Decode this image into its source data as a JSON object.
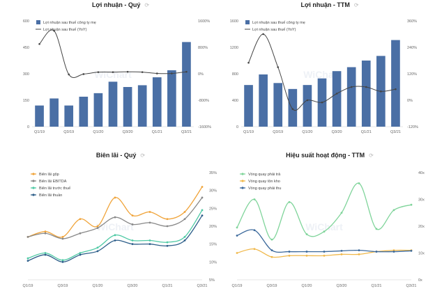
{
  "charts": [
    {
      "id": "c1",
      "title": "Lợi nhuận - Quý",
      "chart_data": {
        "type": "bar",
        "title": "Lợi nhuận - Quý",
        "categories": [
          "Q1/19",
          "Q2/19",
          "Q3/19",
          "Q4/19",
          "Q1/20",
          "Q2/20",
          "Q3/20",
          "Q4/20",
          "Q1/21",
          "Q2/21",
          "Q3/21"
        ],
        "x_tick_labels": [
          "Q1/19",
          "Q3/19",
          "Q1/20",
          "Q3/20",
          "Q1/21",
          "Q3/21"
        ],
        "series": [
          {
            "name": "Lợi nhuận sau thuế công ty mẹ",
            "type": "bar",
            "axis": "left",
            "color": "#4a6fa5",
            "values": [
              120,
              160,
              120,
              170,
              190,
              255,
              225,
              235,
              280,
              320,
              480
            ]
          },
          {
            "name": "Lợi nhuận sau thuế (YoY)",
            "type": "line",
            "axis": "right",
            "color": "#444444",
            "values": [
              900,
              1300,
              -20,
              -10,
              50,
              50,
              60,
              50,
              10,
              10,
              60
            ]
          }
        ],
        "ylim_left": [
          0,
          600
        ],
        "yticks_left": [
          0,
          150,
          300,
          450,
          600
        ],
        "ylim_right": [
          -1600,
          1600
        ],
        "yticks_right": [
          "1600%",
          "800%",
          "0%",
          "-800%",
          "-1600%"
        ],
        "yticks_left_labels": [
          "600",
          "450",
          "300",
          "150",
          "0"
        ]
      }
    },
    {
      "id": "c2",
      "title": "Lợi nhuận - TTM",
      "chart_data": {
        "type": "bar",
        "title": "Lợi nhuận - TTM",
        "categories": [
          "Q1/19",
          "Q2/19",
          "Q3/19",
          "Q4/19",
          "Q1/20",
          "Q2/20",
          "Q3/20",
          "Q4/20",
          "Q1/21",
          "Q2/21",
          "Q3/21"
        ],
        "x_tick_labels": [
          "Q1/19",
          "Q3/19",
          "Q1/20",
          "Q3/20",
          "Q1/21",
          "Q3/21"
        ],
        "series": [
          {
            "name": "Lợi nhuận sau thuế công ty mẹ",
            "type": "bar",
            "axis": "left",
            "color": "#4a6fa5",
            "values": [
              630,
              790,
              660,
              570,
              630,
              730,
              840,
              900,
              1000,
              1070,
              1310
            ]
          },
          {
            "name": "Lợi nhuận sau thuế (YoY)",
            "type": "line",
            "axis": "right",
            "color": "#444444",
            "values": [
              170,
              300,
              150,
              -40,
              0,
              -10,
              30,
              60,
              60,
              40,
              50
            ]
          }
        ],
        "ylim_left": [
          0,
          1600
        ],
        "yticks_left": [
          0,
          400,
          800,
          1200,
          1600
        ],
        "ylim_right": [
          -120,
          360
        ],
        "yticks_right": [
          "360%",
          "240%",
          "120%",
          "0%",
          "-120%"
        ],
        "yticks_left_labels": [
          "1600",
          "1200",
          "800",
          "400",
          "0"
        ]
      }
    },
    {
      "id": "c3",
      "title": "Biên lãi - Quý",
      "chart_data": {
        "type": "line",
        "title": "Biên lãi - Quý",
        "x": [
          "Q1/19",
          "Q2/19",
          "Q3/19",
          "Q4/19",
          "Q1/20",
          "Q2/20",
          "Q3/20",
          "Q4/20",
          "Q1/21",
          "Q2/21",
          "Q3/21"
        ],
        "x_tick_labels": [
          "Q1/19",
          "Q3/19",
          "Q1/20",
          "Q3/20",
          "Q1/21",
          "Q3/21"
        ],
        "series": [
          {
            "name": "Biên lãi gộp",
            "color": "#f0a43a",
            "values": [
              17,
              18.5,
              17,
              22,
              20,
              28,
              23,
              24,
              22,
              24,
              31
            ]
          },
          {
            "name": "Biên lãi EBITDA",
            "color": "#888888",
            "values": [
              17,
              18,
              16.5,
              18,
              19.5,
              22.5,
              20.5,
              21,
              20,
              22,
              28
            ]
          },
          {
            "name": "Biên lãi trước thuế",
            "color": "#4ec9a4",
            "values": [
              11,
              12.5,
              10.5,
              12.5,
              14,
              17.5,
              16,
              16,
              15.5,
              17,
              24.5
            ]
          },
          {
            "name": "Biên lãi thuần",
            "color": "#2e5f8a",
            "values": [
              10.3,
              12,
              10,
              12,
              13,
              16,
              15,
              15,
              14.5,
              16,
              23
            ]
          }
        ],
        "ylim": [
          5,
          35
        ],
        "yticks_right": [
          "35%",
          "30%",
          "25%",
          "20%",
          "15%",
          "10%",
          "5%"
        ]
      }
    },
    {
      "id": "c4",
      "title": "Hiệu suất hoạt động - TTM",
      "chart_data": {
        "type": "line",
        "title": "Hiệu suất hoạt động - TTM",
        "x": [
          "Q1/19",
          "Q2/19",
          "Q3/19",
          "Q4/19",
          "Q1/20",
          "Q2/20",
          "Q3/20",
          "Q4/20",
          "Q1/21",
          "Q2/21",
          "Q3/21"
        ],
        "x_tick_labels": [
          "Q1/19",
          "Q3/19",
          "Q1/20",
          "Q3/20",
          "Q1/21",
          "Q3/21"
        ],
        "series": [
          {
            "name": "Vòng quay phải trả",
            "color": "#7fd49a",
            "values": [
              19.5,
              30,
              15,
              29,
              17,
              18,
              25,
              36,
              19,
              26,
              28
            ]
          },
          {
            "name": "Vòng quay tồn kho",
            "color": "#f0b84a",
            "values": [
              10,
              11.5,
              8.5,
              9,
              9,
              9,
              9.5,
              9.5,
              10.5,
              11,
              11
            ]
          },
          {
            "name": "Vòng quay phải thu",
            "color": "#3d6a9c",
            "values": [
              16.5,
              18.5,
              11,
              10.5,
              10.5,
              10.5,
              10.8,
              11,
              10.5,
              10.5,
              10.8
            ]
          }
        ],
        "ylim": [
          0,
          40
        ],
        "yticks_right": [
          "40x",
          "30x",
          "20x",
          "10x",
          "0x"
        ]
      }
    }
  ],
  "watermark": "WiChart"
}
